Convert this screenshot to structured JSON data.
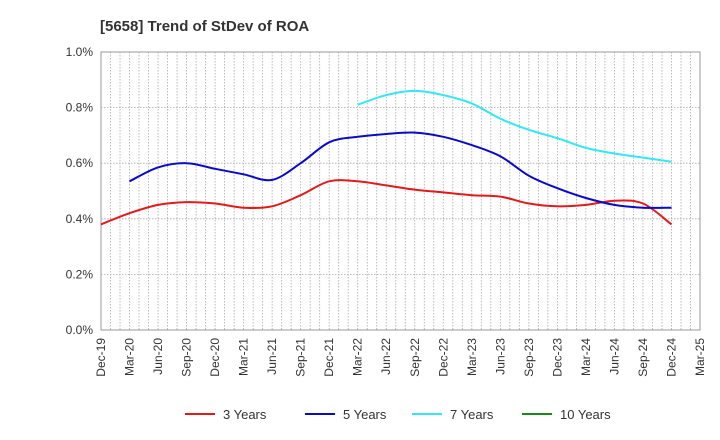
{
  "chart_data": {
    "type": "line",
    "title": "[5658]  Trend of StDev of ROA",
    "xlabel": "",
    "ylabel": "",
    "x": [
      "Dec-19",
      "Mar-20",
      "Jun-20",
      "Sep-20",
      "Dec-20",
      "Mar-21",
      "Jun-21",
      "Sep-21",
      "Dec-21",
      "Mar-22",
      "Jun-22",
      "Sep-22",
      "Dec-22",
      "Mar-23",
      "Jun-23",
      "Sep-23",
      "Dec-23",
      "Mar-24",
      "Jun-24",
      "Sep-24",
      "Dec-24",
      "Mar-25"
    ],
    "ylim": [
      0,
      1.0
    ],
    "yticks": [
      "0.0%",
      "0.2%",
      "0.4%",
      "0.6%",
      "0.8%",
      "1.0%"
    ],
    "grid": "vertical-dotted-monthly, horizontal-dotted",
    "legend": "bottom",
    "series": [
      {
        "name": "3 Years",
        "color": "#e31a1c",
        "values": [
          0.38,
          0.42,
          0.45,
          0.46,
          0.455,
          0.44,
          0.445,
          0.485,
          0.535,
          0.535,
          0.52,
          0.505,
          0.495,
          0.485,
          0.48,
          0.455,
          0.445,
          0.45,
          0.465,
          0.455,
          0.38,
          null
        ]
      },
      {
        "name": "5 Years",
        "color": "#0a0ac8",
        "values": [
          null,
          0.535,
          0.585,
          0.6,
          0.58,
          0.56,
          0.54,
          0.6,
          0.675,
          0.695,
          0.705,
          0.71,
          0.695,
          0.665,
          0.625,
          0.555,
          0.51,
          0.475,
          0.45,
          0.44,
          0.44,
          null
        ]
      },
      {
        "name": "7 Years",
        "color": "#33e8f0",
        "values": [
          null,
          null,
          null,
          null,
          null,
          null,
          null,
          null,
          null,
          0.81,
          0.845,
          0.86,
          0.845,
          0.815,
          0.76,
          0.72,
          0.69,
          0.655,
          0.635,
          0.62,
          0.605,
          null
        ]
      },
      {
        "name": "10 Years",
        "color": "#1a8a1a",
        "values": [
          null,
          null,
          null,
          null,
          null,
          null,
          null,
          null,
          null,
          null,
          null,
          null,
          null,
          null,
          null,
          null,
          null,
          null,
          null,
          null,
          null,
          null
        ]
      }
    ]
  }
}
